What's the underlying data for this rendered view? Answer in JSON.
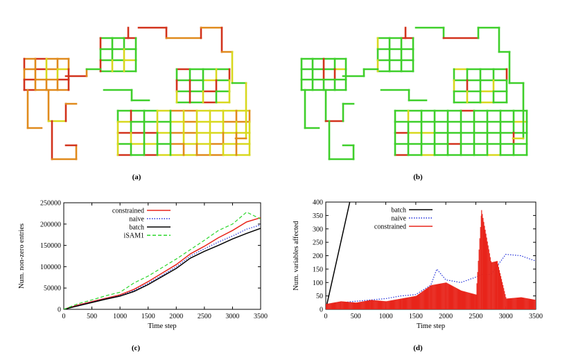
{
  "panels": {
    "a": {
      "caption": "(a)"
    },
    "b": {
      "caption": "(b)"
    },
    "c": {
      "caption": "(c)"
    },
    "d": {
      "caption": "(d)"
    }
  },
  "colors": {
    "constrained": "#e8251b",
    "naive": "#1c2bd8",
    "batch": "#000000",
    "isam1": "#29d629",
    "map_green": "#3ecf2a",
    "map_yellow": "#d8d81e",
    "map_orange": "#e08a1c",
    "map_red": "#d2321c"
  },
  "chart_data": [
    {
      "id": "c",
      "type": "line",
      "xlabel": "Time step",
      "ylabel": "Num. non-zero entries",
      "xlim": [
        0,
        3500
      ],
      "ylim": [
        0,
        250000
      ],
      "xticks": [
        0,
        500,
        1000,
        1500,
        2000,
        2500,
        3000,
        3500
      ],
      "yticks": [
        0,
        50000,
        100000,
        150000,
        200000,
        250000
      ],
      "legend_position": "top-left",
      "series": [
        {
          "name": "constrained",
          "style": "solid",
          "color": "#e8251b",
          "x": [
            0,
            250,
            500,
            750,
            1000,
            1250,
            1500,
            1750,
            2000,
            2250,
            2500,
            2750,
            3000,
            3250,
            3500
          ],
          "y": [
            0,
            10000,
            18000,
            26000,
            34000,
            47000,
            65000,
            85000,
            105000,
            130000,
            148000,
            168000,
            185000,
            205000,
            215000
          ]
        },
        {
          "name": "naive",
          "style": "dotted",
          "color": "#1c2bd8",
          "x": [
            0,
            250,
            500,
            750,
            1000,
            1250,
            1500,
            1750,
            2000,
            2250,
            2500,
            2750,
            3000,
            3250,
            3500
          ],
          "y": [
            0,
            9000,
            17000,
            25000,
            32000,
            44000,
            61000,
            80000,
            100000,
            125000,
            142000,
            158000,
            172000,
            188000,
            198000
          ]
        },
        {
          "name": "batch",
          "style": "solid",
          "color": "#000000",
          "x": [
            0,
            250,
            500,
            750,
            1000,
            1250,
            1500,
            1750,
            2000,
            2250,
            2500,
            2750,
            3000,
            3250,
            3500
          ],
          "y": [
            0,
            8000,
            16000,
            24000,
            31000,
            42000,
            58000,
            77000,
            96000,
            120000,
            136000,
            150000,
            165000,
            178000,
            190000
          ]
        },
        {
          "name": "iSAM1",
          "style": "dashed",
          "color": "#29d629",
          "x": [
            0,
            250,
            500,
            750,
            1000,
            1250,
            1500,
            1750,
            2000,
            2250,
            2500,
            2750,
            3000,
            3250,
            3500
          ],
          "y": [
            0,
            13000,
            22000,
            32000,
            40000,
            62000,
            78000,
            98000,
            118000,
            140000,
            162000,
            185000,
            200000,
            228000,
            212000
          ]
        }
      ]
    },
    {
      "id": "d",
      "type": "line",
      "xlabel": "Time step",
      "ylabel": "Num. variables affected",
      "xlim": [
        0,
        3500
      ],
      "ylim": [
        0,
        400
      ],
      "xticks": [
        0,
        500,
        1000,
        1500,
        2000,
        2500,
        3000,
        3500
      ],
      "yticks": [
        0,
        50,
        100,
        150,
        200,
        250,
        300,
        350,
        400
      ],
      "legend_position": "top-left",
      "series": [
        {
          "name": "batch",
          "style": "solid",
          "color": "#000000",
          "x": [
            0,
            400
          ],
          "y": [
            0,
            400
          ]
        },
        {
          "name": "naive",
          "style": "dotted",
          "color": "#1c2bd8",
          "x": [
            0,
            250,
            500,
            750,
            1000,
            1250,
            1500,
            1750,
            1850,
            2000,
            2250,
            2500,
            2600,
            2750,
            3000,
            3250,
            3500
          ],
          "y": [
            15,
            25,
            30,
            35,
            40,
            50,
            55,
            90,
            150,
            110,
            100,
            120,
            130,
            130,
            205,
            200,
            180
          ]
        },
        {
          "name": "constrained",
          "style": "bars",
          "color": "#e8251b",
          "x": [
            0,
            250,
            500,
            750,
            1000,
            1250,
            1500,
            1750,
            2000,
            2250,
            2500,
            2590,
            2750,
            2850,
            3000,
            3250,
            3500
          ],
          "y": [
            20,
            30,
            25,
            35,
            30,
            40,
            50,
            90,
            100,
            70,
            55,
            370,
            175,
            180,
            40,
            45,
            35
          ]
        }
      ]
    }
  ]
}
